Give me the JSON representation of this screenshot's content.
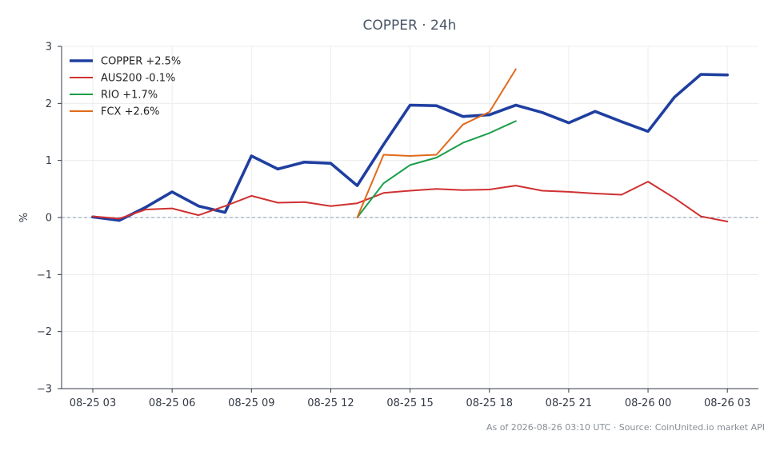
{
  "chart_data": {
    "type": "line",
    "title": "COPPER · 24h",
    "ylabel": "%",
    "xlabel": "",
    "ylim": [
      -3,
      3
    ],
    "yticks": [
      3,
      2,
      1,
      0,
      -1,
      -2,
      -3
    ],
    "ytick_labels": [
      "3",
      "2",
      "1",
      "0",
      "−1",
      "−2",
      "−3"
    ],
    "x_tick_positions": [
      0,
      3,
      6,
      9,
      12,
      15,
      18,
      21,
      24
    ],
    "x_tick_labels": [
      "08-25 03",
      "08-25 06",
      "08-25 09",
      "08-25 12",
      "08-25 15",
      "08-25 18",
      "08-25 21",
      "08-26 00",
      "08-26 03"
    ],
    "grid": true,
    "zero_line": "dashed",
    "legend": "top-left",
    "series": [
      {
        "name": "COPPER +2.5%",
        "color": "#1f3fa0",
        "x": [
          0,
          1,
          2,
          3,
          4,
          5,
          6,
          7,
          8,
          9,
          10,
          11,
          12,
          13,
          14,
          15,
          16,
          17,
          18,
          19,
          20,
          21,
          22,
          23,
          24
        ],
        "values": [
          0.01,
          -0.05,
          0.18,
          0.45,
          0.2,
          0.09,
          1.08,
          0.85,
          0.97,
          0.95,
          0.56,
          1.28,
          1.97,
          1.96,
          1.77,
          1.8,
          1.97,
          1.84,
          1.66,
          1.86,
          1.68,
          1.51,
          2.11,
          2.51,
          2.5
        ]
      },
      {
        "name": "AUS200 -0.1%",
        "color": "#d03030",
        "x": [
          0,
          1,
          2,
          3,
          4,
          5,
          6,
          7,
          8,
          9,
          10,
          11,
          12,
          13,
          14,
          15,
          16,
          17,
          18,
          19,
          20,
          21,
          22,
          23,
          24
        ],
        "values": [
          0.02,
          -0.02,
          0.14,
          0.16,
          0.04,
          0.2,
          0.38,
          0.26,
          0.27,
          0.2,
          0.25,
          0.43,
          0.47,
          0.5,
          0.48,
          0.49,
          0.56,
          0.47,
          0.45,
          0.42,
          0.4,
          0.63,
          0.34,
          0.02,
          -0.07
        ]
      },
      {
        "name": "RIO +1.7%",
        "color": "#1a9e4a",
        "x": [
          10,
          11,
          12,
          13,
          14,
          15,
          16
        ],
        "values": [
          0.0,
          0.6,
          0.92,
          1.05,
          1.31,
          1.48,
          1.69
        ]
      },
      {
        "name": "FCX +2.6%",
        "color": "#e06a1a",
        "x": [
          10,
          11,
          12,
          13,
          14,
          15,
          16
        ],
        "values": [
          0.0,
          1.1,
          1.08,
          1.1,
          1.63,
          1.85,
          2.6
        ]
      }
    ]
  },
  "footer": "As of 2026-08-26 03:10 UTC · Source: CoinUnited.io market API"
}
